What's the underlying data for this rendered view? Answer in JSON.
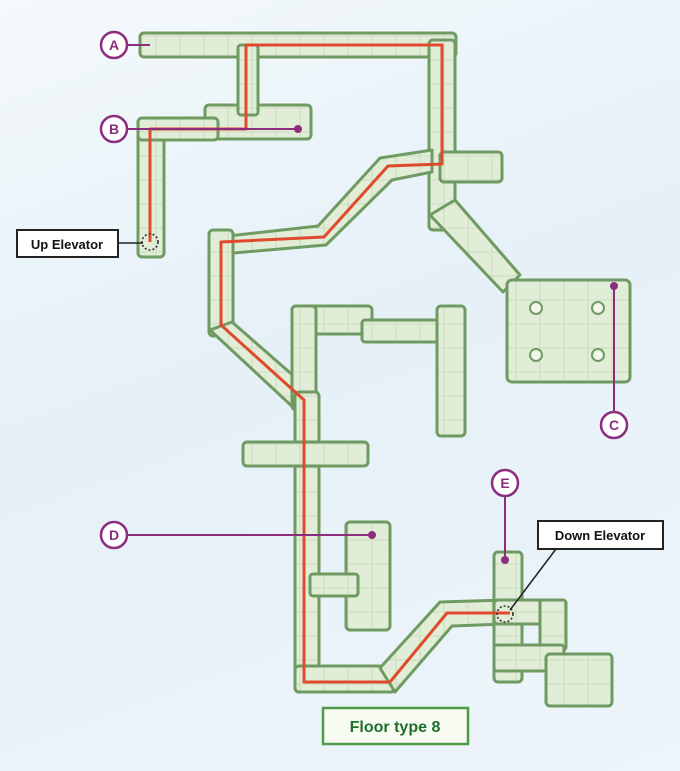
{
  "map": {
    "title": "Floor type 8",
    "markers": [
      {
        "id": "a",
        "letter": "A"
      },
      {
        "id": "b",
        "letter": "B"
      },
      {
        "id": "c",
        "letter": "C"
      },
      {
        "id": "d",
        "letter": "D"
      },
      {
        "id": "e",
        "letter": "E"
      }
    ],
    "callouts": {
      "up_elevator": "Up Elevator",
      "down_elevator": "Down Elevator"
    },
    "colors": {
      "room_fill": "#e3eed9",
      "room_stroke": "#6f9b63",
      "route": "#e04a2c",
      "marker": "#8c2d7e",
      "label_border": "#222222",
      "title_border": "#4e9a46",
      "title_text": "#1f6e2a"
    },
    "icons": [
      "up-elevator-icon",
      "down-elevator-icon",
      "pillar-icon"
    ]
  }
}
